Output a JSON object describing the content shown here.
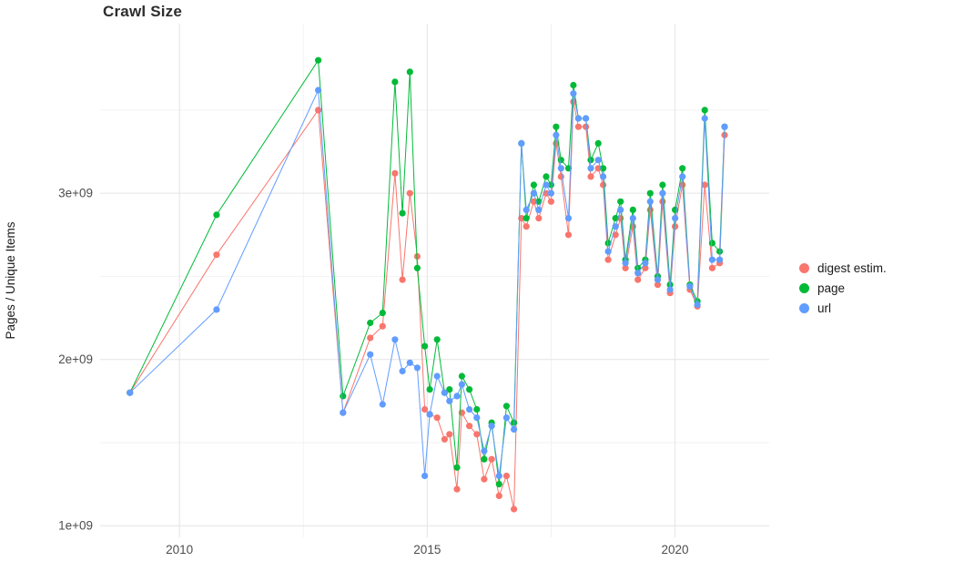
{
  "chart_data": {
    "type": "line",
    "title": "Crawl Size",
    "xlabel": "",
    "ylabel": "Pages / Unique Items",
    "legend_position": "right",
    "background": "#ffffff",
    "y_unit": "1e+09",
    "x_range": [
      2008.4,
      2021.9
    ],
    "y_range": [
      0.93,
      4.02
    ],
    "x_ticks": [
      {
        "value": 2010,
        "label": "2010"
      },
      {
        "value": 2015,
        "label": "2015"
      },
      {
        "value": 2020,
        "label": "2020"
      }
    ],
    "y_ticks": [
      {
        "value": 1,
        "label": "1e+09"
      },
      {
        "value": 2,
        "label": "2e+09"
      },
      {
        "value": 3,
        "label": "3e+09"
      }
    ],
    "grid": {
      "major_color": "#e4e4e4",
      "minor_color": "#f2f2f2",
      "x_minor": [
        2012.5,
        2017.5
      ],
      "y_minor": [
        1.5,
        2.5,
        3.5
      ]
    },
    "axis_text_color": "#4d4d4d",
    "x": [
      2009.0,
      2010.75,
      2012.8,
      2013.3,
      2013.85,
      2014.1,
      2014.35,
      2014.5,
      2014.65,
      2014.8,
      2014.95,
      2015.05,
      2015.2,
      2015.35,
      2015.45,
      2015.6,
      2015.7,
      2015.85,
      2016.0,
      2016.15,
      2016.3,
      2016.45,
      2016.6,
      2016.75,
      2016.9,
      2017.0,
      2017.15,
      2017.25,
      2017.4,
      2017.5,
      2017.6,
      2017.7,
      2017.85,
      2017.95,
      2018.05,
      2018.2,
      2018.3,
      2018.45,
      2018.55,
      2018.65,
      2018.8,
      2018.9,
      2019.0,
      2019.15,
      2019.25,
      2019.4,
      2019.5,
      2019.65,
      2019.75,
      2019.9,
      2020.0,
      2020.15,
      2020.3,
      2020.45,
      2020.6,
      2020.75,
      2020.9,
      2021.0
    ],
    "series": [
      {
        "name": "digest estim.",
        "color": "#F8766D",
        "values": [
          1.8,
          2.63,
          3.5,
          1.68,
          2.13,
          2.2,
          3.12,
          2.48,
          3.0,
          2.62,
          1.7,
          1.67,
          1.65,
          1.52,
          1.55,
          1.22,
          1.68,
          1.6,
          1.55,
          1.28,
          1.4,
          1.18,
          1.3,
          1.1,
          2.85,
          2.8,
          2.95,
          2.85,
          3.0,
          2.95,
          3.3,
          3.1,
          2.75,
          3.55,
          3.4,
          3.4,
          3.1,
          3.15,
          3.05,
          2.6,
          2.75,
          2.85,
          2.55,
          2.8,
          2.48,
          2.55,
          2.9,
          2.45,
          2.95,
          2.4,
          2.8,
          3.05,
          2.42,
          2.32,
          3.05,
          2.55,
          2.58,
          3.35
        ]
      },
      {
        "name": "page",
        "color": "#00BA38",
        "values": [
          1.8,
          2.87,
          3.8,
          1.78,
          2.22,
          2.28,
          3.67,
          2.88,
          3.73,
          2.55,
          2.08,
          1.82,
          2.12,
          1.8,
          1.82,
          1.35,
          1.9,
          1.82,
          1.7,
          1.4,
          1.62,
          1.25,
          1.72,
          1.62,
          3.3,
          2.85,
          3.05,
          2.95,
          3.1,
          3.05,
          3.4,
          3.2,
          3.15,
          3.65,
          3.45,
          3.45,
          3.2,
          3.3,
          3.15,
          2.7,
          2.85,
          2.95,
          2.6,
          2.9,
          2.55,
          2.6,
          3.0,
          2.5,
          3.05,
          2.45,
          2.9,
          3.15,
          2.45,
          2.35,
          3.5,
          2.7,
          2.65,
          3.4
        ]
      },
      {
        "name": "url",
        "color": "#619CFF",
        "values": [
          1.8,
          2.3,
          3.62,
          1.68,
          2.03,
          1.73,
          2.12,
          1.93,
          1.98,
          1.95,
          1.3,
          1.67,
          1.9,
          1.8,
          1.75,
          1.78,
          1.85,
          1.7,
          1.65,
          1.45,
          1.6,
          1.3,
          1.65,
          1.58,
          3.3,
          2.9,
          3.0,
          2.9,
          3.05,
          3.0,
          3.35,
          3.15,
          2.85,
          3.6,
          3.45,
          3.45,
          3.15,
          3.2,
          3.1,
          2.65,
          2.8,
          2.9,
          2.58,
          2.85,
          2.52,
          2.58,
          2.95,
          2.48,
          3.0,
          2.42,
          2.85,
          3.1,
          2.44,
          2.33,
          3.45,
          2.6,
          2.6,
          3.4
        ]
      }
    ]
  }
}
